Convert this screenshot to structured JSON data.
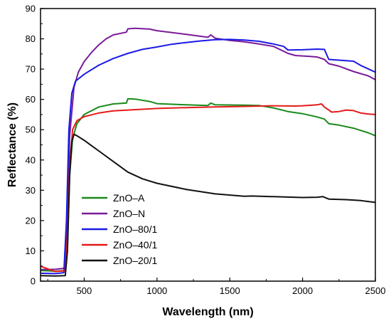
{
  "chart_data": {
    "type": "line",
    "xlabel": "Wavelength (nm)",
    "ylabel": "Reflectance (%)",
    "xlim": [
      200,
      2500
    ],
    "ylim": [
      0,
      90
    ],
    "x_ticks": [
      500,
      1000,
      1500,
      2000,
      2500
    ],
    "y_ticks": [
      0,
      10,
      20,
      30,
      40,
      50,
      60,
      70,
      80,
      90
    ],
    "grid": false,
    "legend_position": "lower-left",
    "series": [
      {
        "name": "ZnO–A",
        "color": "#1a8a1a",
        "points": [
          [
            200,
            3.5
          ],
          [
            300,
            3.3
          ],
          [
            370,
            3.5
          ],
          [
            385,
            12
          ],
          [
            400,
            35
          ],
          [
            420,
            47
          ],
          [
            450,
            52
          ],
          [
            500,
            55
          ],
          [
            600,
            57.5
          ],
          [
            700,
            58.5
          ],
          [
            790,
            58.8
          ],
          [
            800,
            60.2
          ],
          [
            850,
            60.1
          ],
          [
            950,
            59.3
          ],
          [
            1000,
            58.6
          ],
          [
            1200,
            58.2
          ],
          [
            1350,
            58
          ],
          [
            1370,
            58.8
          ],
          [
            1400,
            58.2
          ],
          [
            1600,
            58.1
          ],
          [
            1700,
            58
          ],
          [
            1800,
            57.2
          ],
          [
            1900,
            56
          ],
          [
            2000,
            55.3
          ],
          [
            2100,
            54.2
          ],
          [
            2150,
            53.5
          ],
          [
            2180,
            52
          ],
          [
            2250,
            51.5
          ],
          [
            2350,
            50.5
          ],
          [
            2450,
            49
          ],
          [
            2500,
            48
          ]
        ]
      },
      {
        "name": "ZnO–N",
        "color": "#7a1a9a",
        "points": [
          [
            200,
            3.8
          ],
          [
            300,
            3.9
          ],
          [
            370,
            4.3
          ],
          [
            385,
            20
          ],
          [
            400,
            48
          ],
          [
            430,
            64
          ],
          [
            460,
            69
          ],
          [
            500,
            72.5
          ],
          [
            550,
            75.5
          ],
          [
            600,
            78
          ],
          [
            650,
            80
          ],
          [
            700,
            81.3
          ],
          [
            790,
            82.2
          ],
          [
            800,
            83.3
          ],
          [
            850,
            83.5
          ],
          [
            950,
            83.2
          ],
          [
            1000,
            82.7
          ],
          [
            1200,
            81.5
          ],
          [
            1350,
            80.5
          ],
          [
            1370,
            81.3
          ],
          [
            1400,
            80.2
          ],
          [
            1500,
            79.5
          ],
          [
            1600,
            79
          ],
          [
            1700,
            78.3
          ],
          [
            1800,
            77.5
          ],
          [
            1900,
            75.2
          ],
          [
            1950,
            74.5
          ],
          [
            2050,
            74.2
          ],
          [
            2100,
            74
          ],
          [
            2150,
            73.2
          ],
          [
            2180,
            71.8
          ],
          [
            2250,
            71
          ],
          [
            2350,
            69.2
          ],
          [
            2450,
            67.8
          ],
          [
            2500,
            66.5
          ]
        ]
      },
      {
        "name": "ZnO–80/1",
        "color": "#1a1ae6",
        "points": [
          [
            200,
            2.6
          ],
          [
            300,
            2.5
          ],
          [
            360,
            2.8
          ],
          [
            378,
            20
          ],
          [
            395,
            50
          ],
          [
            415,
            62
          ],
          [
            440,
            66
          ],
          [
            500,
            68.3
          ],
          [
            600,
            71.3
          ],
          [
            700,
            73.5
          ],
          [
            800,
            75.2
          ],
          [
            900,
            76.5
          ],
          [
            1000,
            77.3
          ],
          [
            1100,
            78.2
          ],
          [
            1200,
            78.8
          ],
          [
            1300,
            79.3
          ],
          [
            1400,
            79.7
          ],
          [
            1500,
            79.8
          ],
          [
            1600,
            79.6
          ],
          [
            1700,
            79.2
          ],
          [
            1800,
            78.3
          ],
          [
            1870,
            77.5
          ],
          [
            1900,
            76.3
          ],
          [
            2000,
            76.4
          ],
          [
            2100,
            76.6
          ],
          [
            2150,
            76.5
          ],
          [
            2180,
            73.2
          ],
          [
            2300,
            72.8
          ],
          [
            2350,
            72.6
          ],
          [
            2400,
            71.2
          ],
          [
            2500,
            69
          ]
        ]
      },
      {
        "name": "ZnO–40/1",
        "color": "#e61a1a",
        "points": [
          [
            200,
            4.9
          ],
          [
            300,
            3.2
          ],
          [
            370,
            3.4
          ],
          [
            385,
            15
          ],
          [
            400,
            38
          ],
          [
            420,
            50
          ],
          [
            450,
            53
          ],
          [
            500,
            54.3
          ],
          [
            600,
            55.5
          ],
          [
            700,
            56.2
          ],
          [
            800,
            56.5
          ],
          [
            1000,
            57
          ],
          [
            1200,
            57.3
          ],
          [
            1400,
            57.5
          ],
          [
            1600,
            57.7
          ],
          [
            1800,
            57.9
          ],
          [
            1950,
            57.8
          ],
          [
            2000,
            57.9
          ],
          [
            2100,
            58.2
          ],
          [
            2130,
            58.5
          ],
          [
            2150,
            57.5
          ],
          [
            2200,
            55.8
          ],
          [
            2250,
            56
          ],
          [
            2300,
            56.5
          ],
          [
            2350,
            56.3
          ],
          [
            2400,
            55.5
          ],
          [
            2450,
            55.2
          ],
          [
            2500,
            55
          ]
        ]
      },
      {
        "name": "ZnO–20/1",
        "color": "#111111",
        "points": [
          [
            200,
            1.8
          ],
          [
            300,
            1.7
          ],
          [
            370,
            1.8
          ],
          [
            385,
            10
          ],
          [
            400,
            35
          ],
          [
            415,
            46
          ],
          [
            430,
            48.5
          ],
          [
            450,
            48
          ],
          [
            500,
            46.5
          ],
          [
            600,
            43
          ],
          [
            700,
            39.5
          ],
          [
            800,
            36
          ],
          [
            900,
            33.8
          ],
          [
            1000,
            32.3
          ],
          [
            1200,
            30.3
          ],
          [
            1400,
            28.8
          ],
          [
            1600,
            28
          ],
          [
            1650,
            28.1
          ],
          [
            1800,
            27.9
          ],
          [
            2000,
            27.6
          ],
          [
            2100,
            27.7
          ],
          [
            2140,
            27.9
          ],
          [
            2180,
            27.1
          ],
          [
            2300,
            26.9
          ],
          [
            2400,
            26.6
          ],
          [
            2500,
            26
          ]
        ]
      }
    ]
  }
}
